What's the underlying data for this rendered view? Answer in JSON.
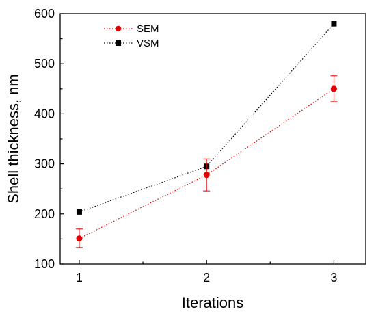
{
  "chart_data": {
    "type": "line",
    "xlabel": "Iterations",
    "ylabel": "Shell thickness, nm",
    "x": [
      1,
      2,
      3
    ],
    "xticks": [
      1,
      2,
      3
    ],
    "xlim": [
      0.85,
      3.25
    ],
    "ylim": [
      100,
      600
    ],
    "yticks": [
      100,
      200,
      300,
      400,
      500,
      600
    ],
    "grid": false,
    "legend_position": "top-left",
    "series": [
      {
        "name": "SEM",
        "color": "#e00000",
        "marker": "circle",
        "line_style": "dotted",
        "values": [
          151,
          278,
          450
        ],
        "error": [
          [
            133,
            170
          ],
          [
            246,
            310
          ],
          [
            425,
            476
          ]
        ]
      },
      {
        "name": "VSM",
        "color": "#000000",
        "marker": "square",
        "line_style": "dotted",
        "values": [
          204,
          295,
          580
        ]
      }
    ]
  }
}
